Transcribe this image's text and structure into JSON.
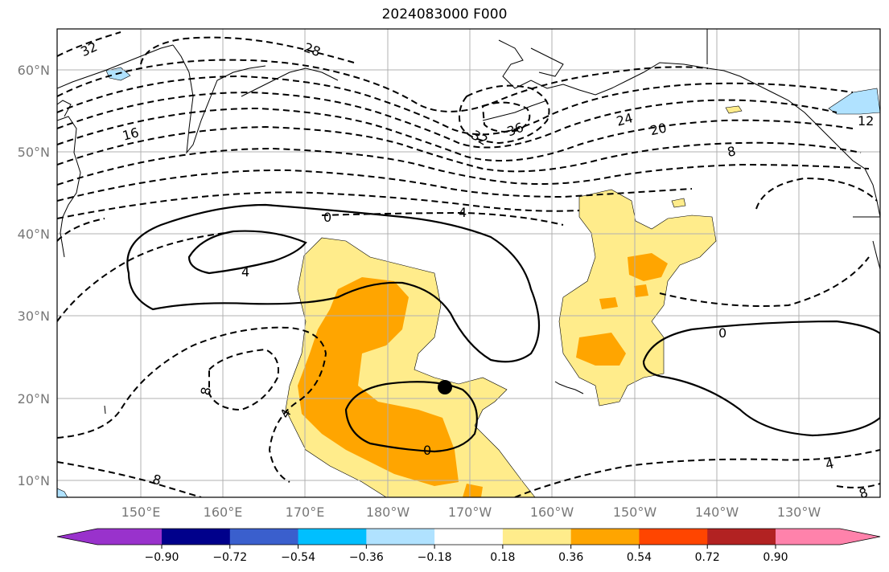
{
  "title": "2024083000 F000",
  "lat_labels": [
    "60°N",
    "50°N",
    "40°N",
    "30°N",
    "20°N",
    "10°N"
  ],
  "lon_labels": [
    "150°E",
    "160°E",
    "170°E",
    "180°W",
    "170°W",
    "160°W",
    "150°W",
    "140°W",
    "130°W"
  ],
  "colorbar": {
    "colors": [
      "#9932cc",
      "#00008b",
      "#3a5fcd",
      "#00bfff",
      "#b0e2ff",
      "#ffffff",
      "#ffec8b",
      "#ffa500",
      "#ff4500",
      "#b22222",
      "#ff82ab"
    ],
    "ticks": [
      "−0.90",
      "−0.72",
      "−0.54",
      "−0.36",
      "−0.18",
      "0.18",
      "0.36",
      "0.54",
      "0.72",
      "0.90"
    ]
  },
  "contour_labels": {
    "l1": "32",
    "l2": "28",
    "l3": "16",
    "l4": "32",
    "l5": "36",
    "l6": "24",
    "l7": "20",
    "l8": "12",
    "l9": "8",
    "l10": "0",
    "l11": "4",
    "l12": "4",
    "l13": "0",
    "l14": "8",
    "l15": "4",
    "l16": "0",
    "l17": "8",
    "l18": "4",
    "l19": "8"
  },
  "colors": {
    "light_yellow": "#ffec8b",
    "orange": "#ffa500",
    "dark_orange": "#ff4500",
    "light_blue": "#b0e2ff",
    "grid": "#b0b0b0"
  }
}
